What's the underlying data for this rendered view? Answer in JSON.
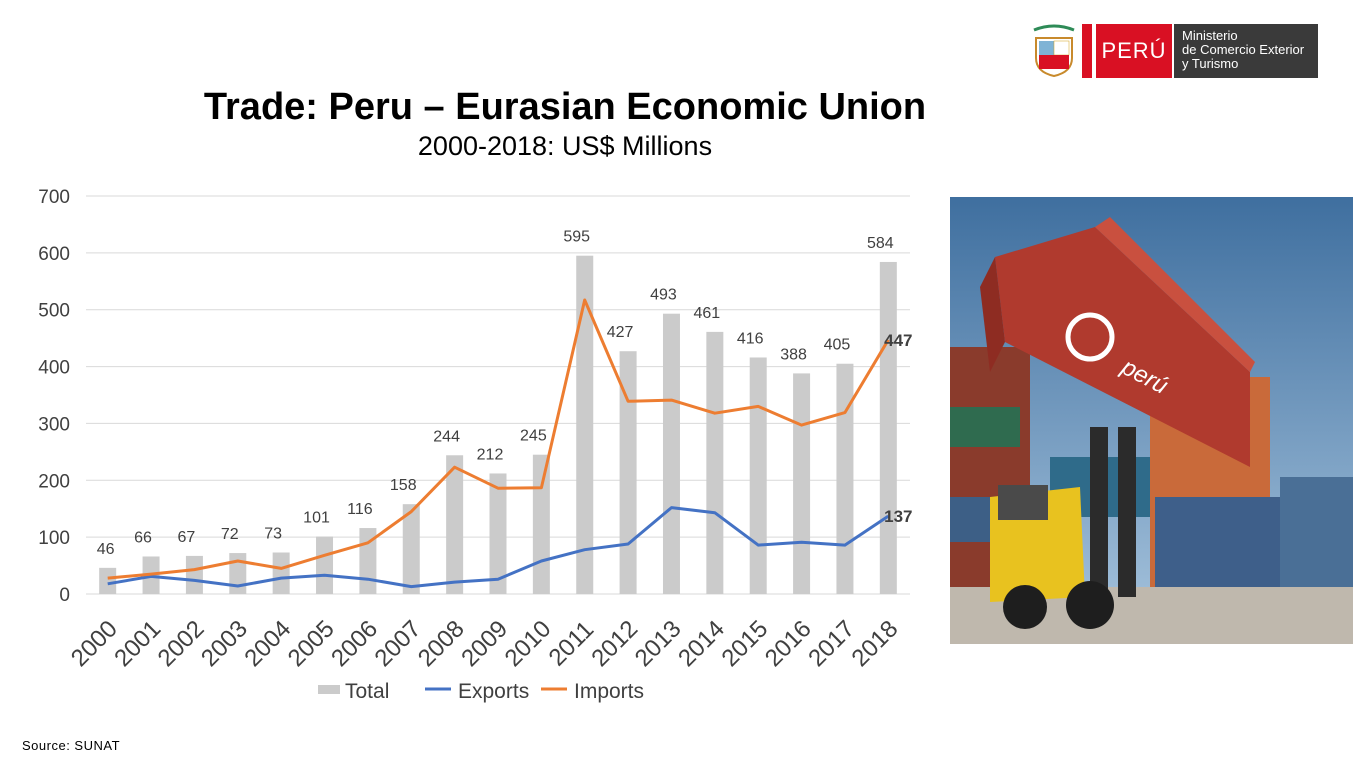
{
  "brand": {
    "country_label": "PERÚ",
    "ministry_lines": [
      "Ministerio",
      "de Comercio Exterior",
      "y Turismo"
    ],
    "colors": {
      "red": "#d91023",
      "dark": "#3a3a3a"
    }
  },
  "source": "Source: SUNAT",
  "photo": {
    "container_mark": "perú",
    "colors": {
      "container": "#b03a2e",
      "sky": "#5a86b0",
      "loader": "#e8c21f"
    }
  },
  "chart_data": {
    "type": "bar",
    "title": "Trade: Peru – Eurasian Economic Union",
    "subtitle": "2000-2018: US$ Millions",
    "categories": [
      "2000",
      "2001",
      "2002",
      "2003",
      "2004",
      "2005",
      "2006",
      "2007",
      "2008",
      "2009",
      "2010",
      "2011",
      "2012",
      "2013",
      "2014",
      "2015",
      "2016",
      "2017",
      "2018"
    ],
    "ylim": [
      0,
      700
    ],
    "yticks": [
      0,
      100,
      200,
      300,
      400,
      500,
      600,
      700
    ],
    "grid": true,
    "legend_position": "bottom",
    "series": [
      {
        "name": "Total",
        "type": "bar",
        "color": "#cbcbcb",
        "values": [
          46,
          66,
          67,
          72,
          73,
          101,
          116,
          158,
          244,
          212,
          245,
          595,
          427,
          493,
          461,
          416,
          388,
          405,
          584
        ]
      },
      {
        "name": "Exports",
        "type": "line",
        "color": "#4472c4",
        "values": [
          18,
          31,
          24,
          14,
          28,
          33,
          26,
          13,
          21,
          26,
          58,
          78,
          88,
          152,
          143,
          86,
          91,
          86,
          137
        ]
      },
      {
        "name": "Imports",
        "type": "line",
        "color": "#ed7d31",
        "values": [
          28,
          35,
          43,
          58,
          45,
          68,
          90,
          145,
          223,
          186,
          187,
          517,
          339,
          341,
          318,
          330,
          297,
          319,
          447
        ]
      }
    ],
    "end_labels": {
      "Exports": "137",
      "Imports": "447"
    }
  }
}
